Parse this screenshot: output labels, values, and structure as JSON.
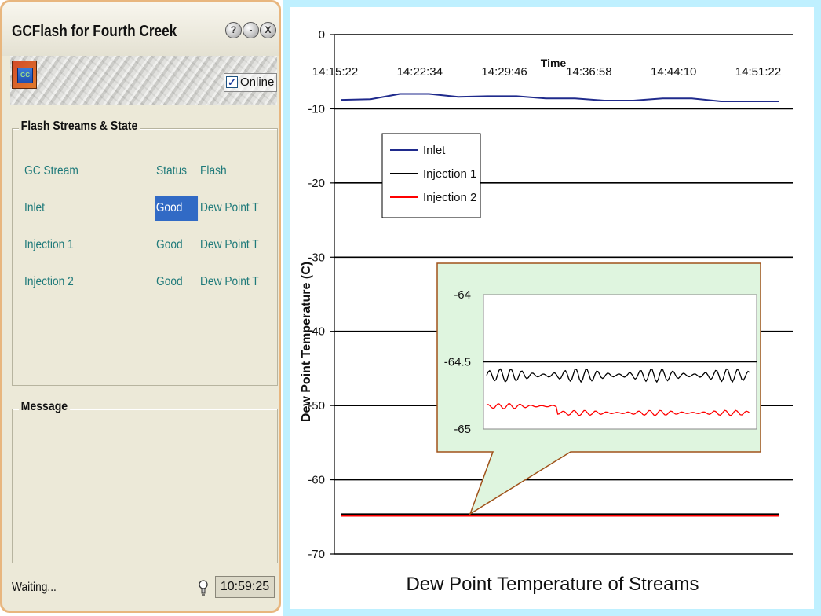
{
  "window": {
    "title": "GCFlash for Fourth Creek",
    "help_button": "?",
    "minimize_button": "-",
    "close_button": "X"
  },
  "header": {
    "icon_label": "GC",
    "online_label": "Online",
    "online_checked": true
  },
  "streams_panel": {
    "title": "Flash Streams & State",
    "columns": [
      "GC Stream",
      "Status",
      "Flash"
    ],
    "rows": [
      {
        "stream": "Inlet",
        "status": "Good",
        "flash": "Dew Point T",
        "selected": true
      },
      {
        "stream": "Injection 1",
        "status": "Good",
        "flash": "Dew Point T",
        "selected": false
      },
      {
        "stream": "Injection 2",
        "status": "Good",
        "flash": "Dew Point T",
        "selected": false
      }
    ]
  },
  "message_panel": {
    "title": "Message"
  },
  "statusbar": {
    "text": "Waiting...",
    "time": "10:59:25",
    "icon": "lightbulb-icon"
  },
  "colors": {
    "window_border": "#e8b67e",
    "selection": "#316ac5",
    "stream_text": "#1f7a7a",
    "inlet": "#1f2a8c",
    "injection1": "#000000",
    "injection2": "#ff0000",
    "chart_frame": "#bff0ff",
    "inset_fill": "#dff5df",
    "inset_border": "#a0521a"
  },
  "chart_data": {
    "type": "line",
    "title": "Dew Point Temperature of Streams",
    "xlabel": "Time",
    "ylabel": "Dew Point Temperature (C)",
    "ylim": [
      -70,
      0
    ],
    "yticks": [
      0,
      -10,
      -20,
      -30,
      -40,
      -50,
      -60,
      -70
    ],
    "xticks": [
      "14:15:22",
      "14:22:34",
      "14:29:46",
      "14:36:58",
      "14:44:10",
      "14:51:22"
    ],
    "x_axis_position": "top",
    "grid": "horizontal",
    "legend_placement": "upper-left",
    "series": [
      {
        "name": "Inlet",
        "color": "#1f2a8c",
        "values": [
          -8.8,
          -8.7,
          -8.0,
          -8.0,
          -8.4,
          -8.3,
          -8.3,
          -8.6,
          -8.6,
          -8.9,
          -8.9,
          -8.6,
          -8.6,
          -9.0,
          -9.0,
          -9.0
        ]
      },
      {
        "name": "Injection 1",
        "color": "#000000",
        "values": [
          -64.65,
          -64.65,
          -64.65,
          -64.65,
          -64.65,
          -64.65,
          -64.65,
          -64.65,
          -64.65,
          -64.65,
          -64.65,
          -64.65,
          -64.65,
          -64.65,
          -64.65,
          -64.65
        ]
      },
      {
        "name": "Injection 2",
        "color": "#ff0000",
        "values": [
          -64.85,
          -64.85,
          -64.85,
          -64.85,
          -64.85,
          -64.85,
          -64.85,
          -64.85,
          -64.85,
          -64.85,
          -64.85,
          -64.85,
          -64.85,
          -64.85,
          -64.85,
          -64.85
        ]
      }
    ],
    "inset": {
      "ylim": [
        -65,
        -64
      ],
      "yticks": [
        "-64",
        "-64.5",
        "-65"
      ],
      "series": [
        {
          "name": "Injection 1",
          "color": "#000000",
          "mean": -64.6,
          "amplitude": 0.05
        },
        {
          "name": "Injection 2",
          "color": "#ff0000",
          "mean": -64.83,
          "amplitude": 0.02
        }
      ]
    }
  }
}
